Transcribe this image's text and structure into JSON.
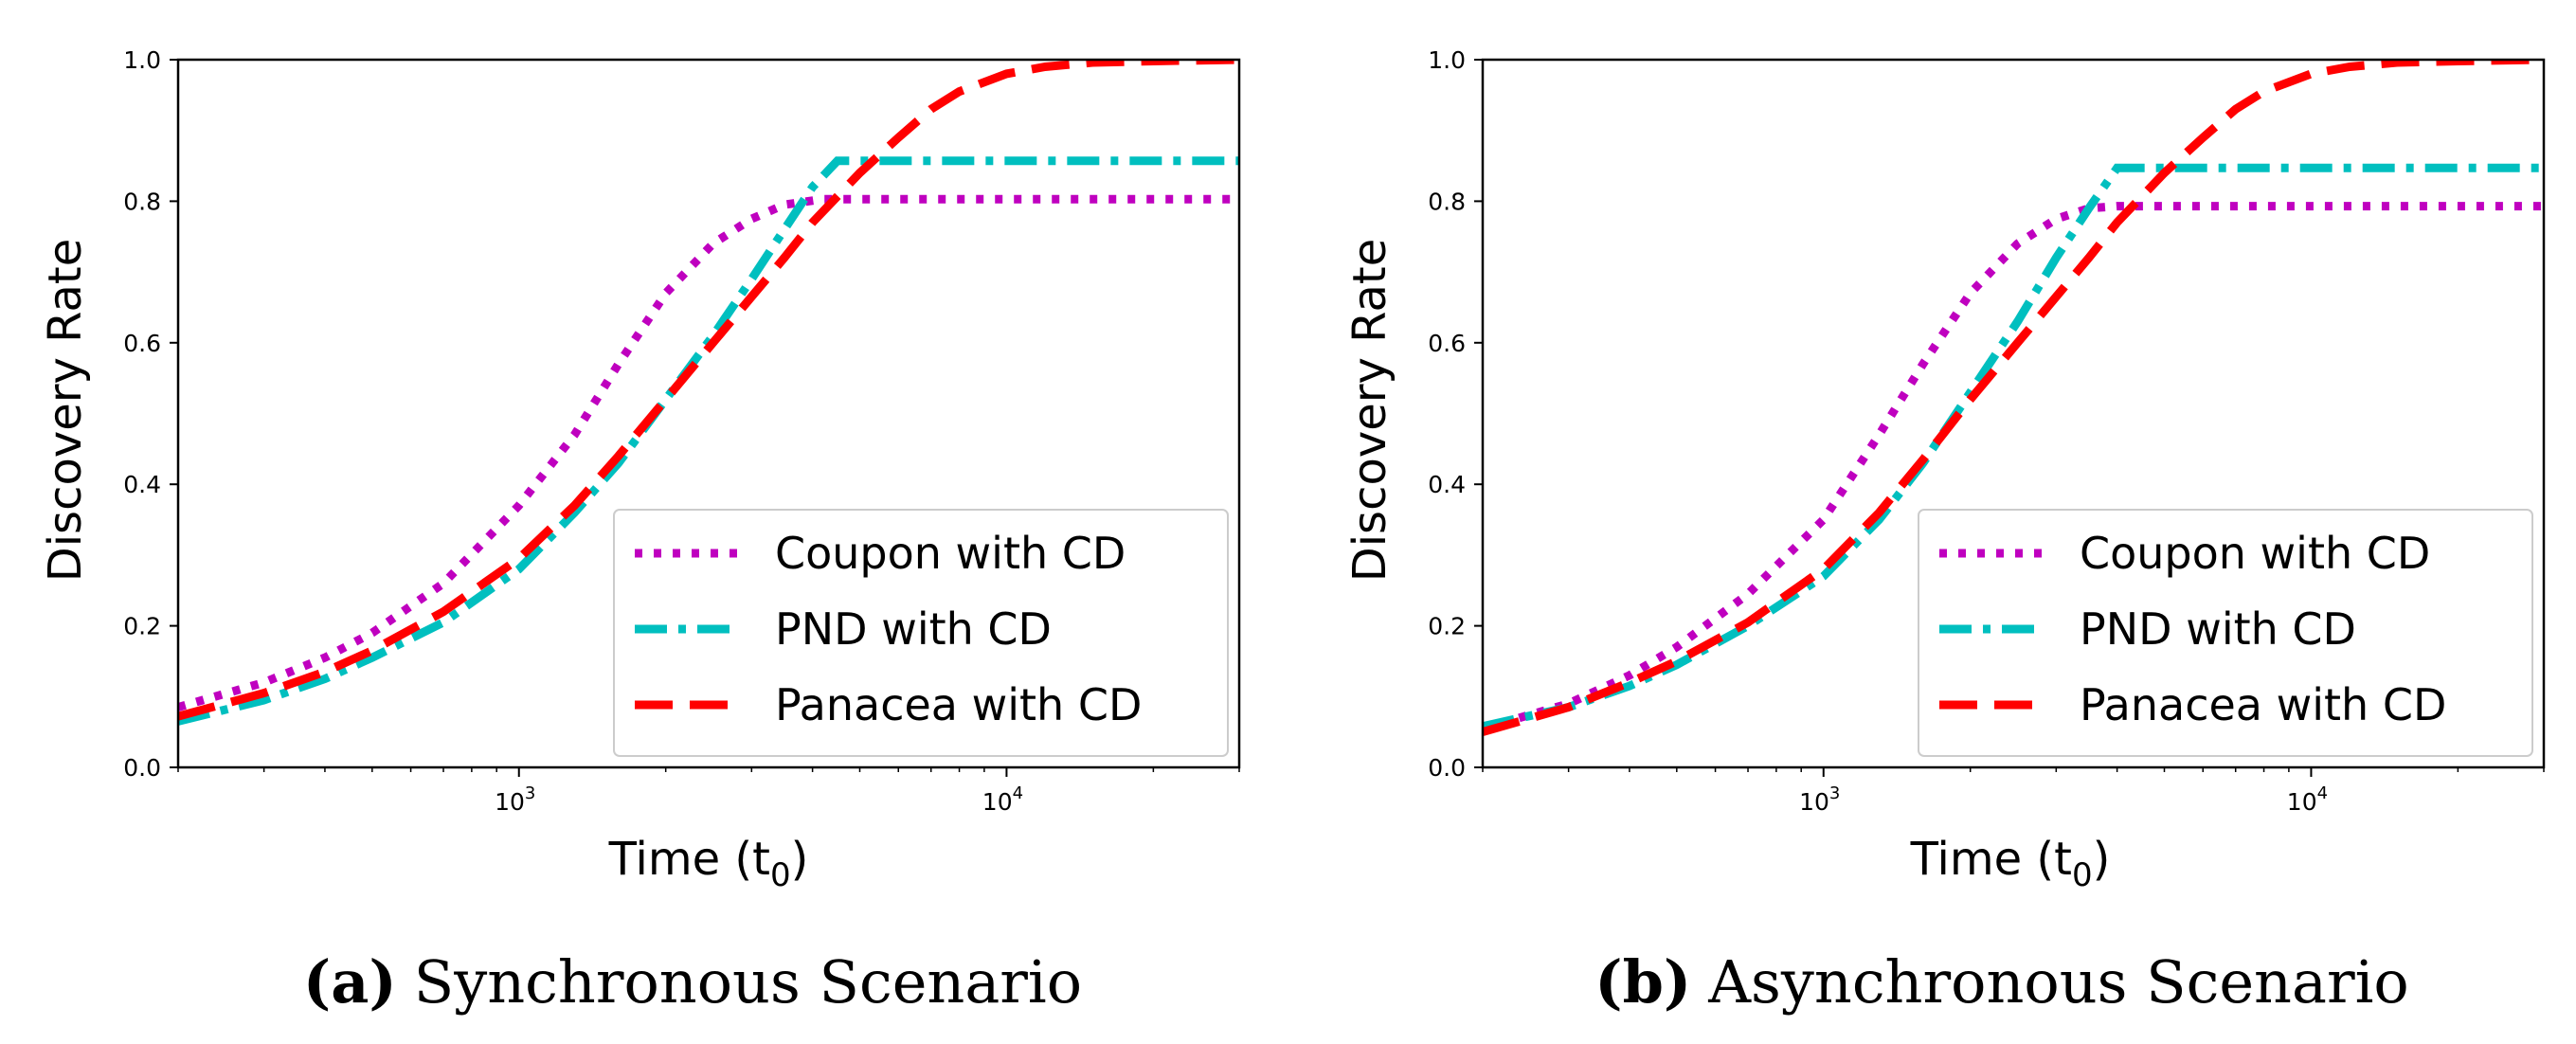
{
  "figure": {
    "panels": [
      {
        "tag": "(a)",
        "caption": "Synchronous Scenario",
        "xlabel": "Time (t",
        "xlabel_sub": "0",
        "xlabel_close": ")",
        "ylabel": "Discovery Rate"
      },
      {
        "tag": "(b)",
        "caption": "Asynchronous Scenario",
        "xlabel": "Time (t",
        "xlabel_sub": "0",
        "xlabel_close": ")",
        "ylabel": "Discovery Rate"
      }
    ]
  },
  "chart_data": [
    {
      "type": "line",
      "title": "Synchronous Scenario",
      "xlabel": "Time (t0)",
      "ylabel": "Discovery Rate",
      "xscale": "log",
      "xlim": [
        200,
        30000
      ],
      "ylim": [
        0,
        1.0
      ],
      "yticks": [
        "0.0",
        "0.2",
        "0.4",
        "0.6",
        "0.8",
        "1.0"
      ],
      "xticks": [
        {
          "base": "10",
          "exp": "3",
          "value": 1000
        },
        {
          "base": "10",
          "exp": "4",
          "value": 10000
        }
      ],
      "legend_position": "lower-right",
      "series": [
        {
          "name": "Coupon with CD",
          "color": "#bf00bf",
          "style": "dotted",
          "x": [
            200,
            300,
            400,
            500,
            700,
            1000,
            1300,
            1600,
            2000,
            2500,
            3000,
            3500,
            4200,
            5000,
            7000,
            10000,
            15000,
            20000,
            30000
          ],
          "y": [
            0.085,
            0.12,
            0.155,
            0.19,
            0.26,
            0.37,
            0.47,
            0.57,
            0.67,
            0.74,
            0.775,
            0.795,
            0.803,
            0.803,
            0.803,
            0.803,
            0.803,
            0.803,
            0.803
          ]
        },
        {
          "name": "PND with CD",
          "color": "#00bfbf",
          "style": "dashdot",
          "x": [
            200,
            300,
            400,
            500,
            700,
            1000,
            1300,
            1600,
            2000,
            2500,
            3000,
            3500,
            4000,
            4500,
            5000,
            7000,
            10000,
            15000,
            20000,
            30000
          ],
          "y": [
            0.065,
            0.095,
            0.125,
            0.155,
            0.205,
            0.28,
            0.36,
            0.43,
            0.52,
            0.61,
            0.69,
            0.76,
            0.82,
            0.857,
            0.857,
            0.857,
            0.857,
            0.857,
            0.857,
            0.857
          ]
        },
        {
          "name": "Panacea with CD",
          "color": "#ff0000",
          "style": "dashed",
          "x": [
            200,
            300,
            400,
            500,
            700,
            1000,
            1300,
            1600,
            2000,
            2500,
            3000,
            3500,
            4000,
            5000,
            6000,
            7000,
            8000,
            10000,
            12000,
            15000,
            20000,
            30000
          ],
          "y": [
            0.072,
            0.105,
            0.135,
            0.165,
            0.22,
            0.295,
            0.37,
            0.44,
            0.52,
            0.6,
            0.665,
            0.72,
            0.77,
            0.84,
            0.89,
            0.93,
            0.955,
            0.98,
            0.99,
            0.996,
            0.998,
            1.0
          ]
        }
      ]
    },
    {
      "type": "line",
      "title": "Asynchronous Scenario",
      "xlabel": "Time (t0)",
      "ylabel": "Discovery Rate",
      "xscale": "log",
      "xlim": [
        200,
        30000
      ],
      "ylim": [
        0,
        1.0
      ],
      "yticks": [
        "0.0",
        "0.2",
        "0.4",
        "0.6",
        "0.8",
        "1.0"
      ],
      "xticks": [
        {
          "base": "10",
          "exp": "3",
          "value": 1000
        },
        {
          "base": "10",
          "exp": "4",
          "value": 10000
        }
      ],
      "legend_position": "lower-right",
      "series": [
        {
          "name": "Coupon with CD",
          "color": "#bf00bf",
          "style": "dotted",
          "x": [
            200,
            300,
            400,
            500,
            700,
            1000,
            1300,
            1600,
            2000,
            2500,
            3000,
            3500,
            4000,
            5000,
            7000,
            10000,
            15000,
            20000,
            30000
          ],
          "y": [
            0.055,
            0.09,
            0.13,
            0.17,
            0.245,
            0.35,
            0.47,
            0.57,
            0.67,
            0.74,
            0.775,
            0.79,
            0.793,
            0.793,
            0.793,
            0.793,
            0.793,
            0.793,
            0.793
          ]
        },
        {
          "name": "PND with CD",
          "color": "#00bfbf",
          "style": "dashdot",
          "x": [
            200,
            300,
            400,
            500,
            700,
            1000,
            1300,
            1600,
            2000,
            2500,
            3000,
            3500,
            4000,
            4500,
            5000,
            7000,
            10000,
            15000,
            20000,
            30000
          ],
          "y": [
            0.058,
            0.085,
            0.115,
            0.145,
            0.2,
            0.27,
            0.35,
            0.43,
            0.53,
            0.63,
            0.72,
            0.79,
            0.847,
            0.847,
            0.847,
            0.847,
            0.847,
            0.847,
            0.847,
            0.847
          ]
        },
        {
          "name": "Panacea with CD",
          "color": "#ff0000",
          "style": "dashed",
          "x": [
            200,
            300,
            400,
            500,
            700,
            1000,
            1300,
            1600,
            2000,
            2500,
            3000,
            3500,
            4000,
            5000,
            6000,
            7000,
            8000,
            10000,
            12000,
            15000,
            20000,
            30000
          ],
          "y": [
            0.05,
            0.085,
            0.12,
            0.15,
            0.205,
            0.28,
            0.36,
            0.435,
            0.52,
            0.6,
            0.665,
            0.72,
            0.77,
            0.84,
            0.89,
            0.93,
            0.955,
            0.98,
            0.99,
            0.996,
            0.998,
            1.0
          ]
        }
      ]
    }
  ]
}
